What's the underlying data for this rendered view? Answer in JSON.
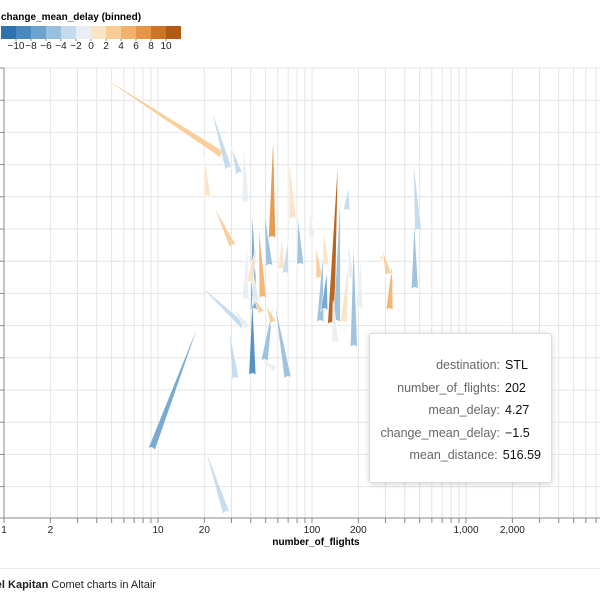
{
  "chart_data": {
    "type": "comet",
    "xlabel": "number_of_flights",
    "x_scale": "log",
    "x_ticks": [
      "1",
      "2",
      "10",
      "20",
      "100",
      "200",
      "1,000",
      "2,000"
    ],
    "grid": true,
    "legend": {
      "title": "change_mean_delay (binned)",
      "placement": "top-left",
      "tick_labels": [
        "−10",
        "−8",
        "−6",
        "−4",
        "−2",
        "0",
        "2",
        "4",
        "6",
        "8",
        "10"
      ],
      "colors": [
        "#2f72b0",
        "#4a89c0",
        "#6da3cf",
        "#98c0de",
        "#c3dbed",
        "#e8eef2",
        "#fbe3c5",
        "#f8cc95",
        "#f2b06a",
        "#e69446",
        "#cc7424",
        "#b15a12"
      ]
    },
    "comets": [
      {
        "x0": 27,
        "y0": 156,
        "x1": 3.8,
        "y1": 71,
        "change": 2
      },
      {
        "x0": 21,
        "y0": 199,
        "x1": 20,
        "y1": 156,
        "change": 1
      },
      {
        "x0": 29,
        "y0": 171,
        "x1": 22,
        "y1": 107,
        "change": -4
      },
      {
        "x0": 34,
        "y0": 176,
        "x1": 30,
        "y1": 147,
        "change": -3
      },
      {
        "x0": 37,
        "y0": 205,
        "x1": 36,
        "y1": 143,
        "change": -2
      },
      {
        "x0": 55,
        "y0": 240,
        "x1": 56,
        "y1": 133,
        "change": 7
      },
      {
        "x0": 53,
        "y0": 268,
        "x1": 49,
        "y1": 212,
        "change": -6
      },
      {
        "x0": 75,
        "y0": 221,
        "x1": 71,
        "y1": 157,
        "change": 1
      },
      {
        "x0": 133,
        "y0": 326,
        "x1": 148,
        "y1": 153,
        "change": 10
      },
      {
        "x0": 145,
        "y0": 324,
        "x1": 153,
        "y1": 192,
        "change": -5
      },
      {
        "x0": 167,
        "y0": 213,
        "x1": 173,
        "y1": 186,
        "change": -3
      },
      {
        "x0": 490,
        "y0": 233,
        "x1": 455,
        "y1": 160,
        "change": -3
      },
      {
        "x0": 465,
        "y0": 291,
        "x1": 462,
        "y1": 221,
        "change": -5
      },
      {
        "x0": 31,
        "y0": 248,
        "x1": 23,
        "y1": 206,
        "change": 2
      },
      {
        "x0": 42,
        "y0": 312,
        "x1": 41,
        "y1": 208,
        "change": -7
      },
      {
        "x0": 48,
        "y0": 300,
        "x1": 45,
        "y1": 225,
        "change": 4
      },
      {
        "x0": 63,
        "y0": 272,
        "x1": 64,
        "y1": 237,
        "change": 0
      },
      {
        "x0": 67,
        "y0": 276,
        "x1": 70,
        "y1": 240,
        "change": -4
      },
      {
        "x0": 84,
        "y0": 267,
        "x1": 81,
        "y1": 216,
        "change": -5
      },
      {
        "x0": 100,
        "y0": 240,
        "x1": 97,
        "y1": 211,
        "change": -2
      },
      {
        "x0": 112,
        "y0": 281,
        "x1": 106,
        "y1": 246,
        "change": 3
      },
      {
        "x0": 123,
        "y0": 268,
        "x1": 119,
        "y1": 230,
        "change": 0
      },
      {
        "x0": 113,
        "y0": 324,
        "x1": 118,
        "y1": 252,
        "change": -6
      },
      {
        "x0": 120,
        "y0": 312,
        "x1": 125,
        "y1": 271,
        "change": -8
      },
      {
        "x0": 180,
        "y0": 281,
        "x1": 171,
        "y1": 242,
        "change": -1
      },
      {
        "x0": 203,
        "y0": 311,
        "x1": 207,
        "y1": 258,
        "change": -1
      },
      {
        "x0": 298,
        "y0": 262,
        "x1": 273,
        "y1": 255,
        "change": 1
      },
      {
        "x0": 318,
        "y0": 312,
        "x1": 332,
        "y1": 262,
        "change": 4
      },
      {
        "x0": 316,
        "y0": 277,
        "x1": 288,
        "y1": 250,
        "change": 2
      },
      {
        "x0": 187,
        "y0": 349,
        "x1": 186,
        "y1": 240,
        "change": -5
      },
      {
        "x0": 160,
        "y0": 325,
        "x1": 173,
        "y1": 261,
        "change": 0
      },
      {
        "x0": 37,
        "y0": 302,
        "x1": 38,
        "y1": 243,
        "change": -2
      },
      {
        "x0": 44,
        "y0": 305,
        "x1": 40,
        "y1": 265,
        "change": -1
      },
      {
        "x0": 39,
        "y0": 285,
        "x1": 44,
        "y1": 244,
        "change": 0
      },
      {
        "x0": 32,
        "y0": 381,
        "x1": 29,
        "y1": 330,
        "change": -3
      },
      {
        "x0": 37,
        "y0": 328,
        "x1": 18,
        "y1": 283,
        "change": -4
      },
      {
        "x0": 39,
        "y0": 330,
        "x1": 31,
        "y1": 308,
        "change": -2
      },
      {
        "x0": 48,
        "y0": 315,
        "x1": 42,
        "y1": 298,
        "change": 2
      },
      {
        "x0": 41,
        "y0": 377,
        "x1": 41,
        "y1": 296,
        "change": -9
      },
      {
        "x0": 49,
        "y0": 363,
        "x1": 56,
        "y1": 303,
        "change": -6
      },
      {
        "x0": 70,
        "y0": 380,
        "x1": 57,
        "y1": 301,
        "change": -6
      },
      {
        "x0": 60,
        "y0": 371,
        "x1": 46,
        "y1": 359,
        "change": -1
      },
      {
        "x0": 57,
        "y0": 325,
        "x1": 50,
        "y1": 305,
        "change": 2
      },
      {
        "x0": 9,
        "y0": 451,
        "x1": 19,
        "y1": 318,
        "change": -8
      },
      {
        "x0": 28,
        "y0": 515,
        "x1": 20,
        "y1": 446,
        "change": -4
      },
      {
        "x0": 142,
        "y0": 345,
        "x1": 137,
        "y1": 300,
        "change": -1
      }
    ]
  },
  "tooltip": {
    "rows": [
      {
        "key": "destination:",
        "value": "STL"
      },
      {
        "key": "number_of_flights:",
        "value": "202"
      },
      {
        "key": "mean_delay:",
        "value": "4.27"
      },
      {
        "key": "change_mean_delay:",
        "value": "−1.5"
      },
      {
        "key": "mean_distance:",
        "value": "516.59"
      }
    ]
  },
  "footer": {
    "author": "niel Kapitan",
    "title": "Comet charts in Altair"
  }
}
